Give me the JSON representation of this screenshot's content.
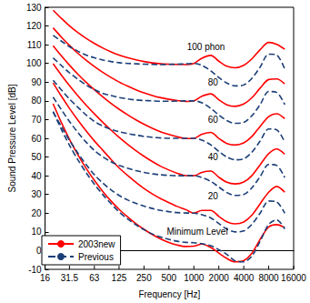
{
  "chart_data": {
    "type": "line",
    "x_label": "Frequency [Hz]",
    "y_label": "Sound Pressure Level [dB]",
    "log": "x",
    "grid": false,
    "legend": "lower left",
    "xlim": [
      16,
      16000
    ],
    "xticks": [
      16,
      31.5,
      63,
      125,
      250,
      500,
      1000,
      2000,
      4000,
      8000,
      16000
    ],
    "ylim": [
      -10,
      130
    ],
    "yticks": [
      -10,
      0,
      10,
      20,
      30,
      40,
      50,
      60,
      70,
      80,
      90,
      100,
      110,
      120,
      130
    ],
    "x": [
      20,
      25,
      31.5,
      40,
      50,
      63,
      80,
      100,
      125,
      160,
      200,
      250,
      315,
      400,
      500,
      630,
      800,
      1000,
      1250,
      1600,
      2000,
      2500,
      3150,
      4000,
      5000,
      6300,
      8000,
      10000,
      12500
    ],
    "series": [
      {
        "name": "2003new",
        "color": "#ff0000",
        "line_style": "solid",
        "values": [
          128.4,
          124.2,
          120.1,
          116.4,
          113.4,
          110.7,
          108.2,
          106.2,
          104.5,
          103.0,
          101.9,
          101.0,
          100.3,
          99.8,
          99.6,
          99.5,
          99.4,
          100.0,
          102.8,
          104.3,
          101.2,
          98.5,
          97.7,
          99.0,
          102.4,
          107.3,
          111.2,
          110.2,
          107.6
        ]
      },
      {
        "name": "2003new",
        "color": "#ff0000",
        "line_style": "solid",
        "values": [
          118.99,
          114.23,
          109.65,
          105.34,
          101.72,
          98.36,
          95.17,
          92.48,
          90.09,
          87.82,
          85.92,
          84.31,
          82.89,
          81.68,
          80.86,
          80.17,
          79.67,
          80.01,
          82.48,
          83.74,
          80.59,
          77.88,
          77.07,
          78.31,
          81.62,
          86.81,
          91.41,
          91.74,
          89.04
        ]
      },
      {
        "name": "2003new",
        "color": "#ff0000",
        "line_style": "solid",
        "values": [
          109.51,
          104.23,
          99.08,
          94.18,
          89.96,
          85.94,
          82.05,
          78.65,
          75.56,
          72.47,
          69.86,
          67.53,
          65.39,
          63.45,
          62.05,
          60.81,
          59.89,
          60.01,
          62.15,
          63.19,
          59.96,
          57.26,
          56.42,
          57.57,
          60.89,
          66.36,
          71.66,
          73.16,
          70.47
        ]
      },
      {
        "name": "2003new",
        "color": "#ff0000",
        "line_style": "solid",
        "values": [
          99.85,
          93.94,
          88.17,
          82.63,
          77.78,
          73.08,
          68.48,
          64.37,
          60.59,
          56.7,
          53.41,
          50.4,
          47.58,
          44.98,
          43.05,
          41.34,
          40.06,
          40.01,
          41.82,
          42.51,
          39.23,
          36.51,
          35.61,
          36.65,
          40.01,
          45.83,
          51.8,
          54.28,
          51.49
        ]
      },
      {
        "name": "2003new",
        "color": "#ff0000",
        "line_style": "solid",
        "values": [
          89.6,
          82.7,
          76.0,
          69.6,
          64.0,
          58.6,
          53.5,
          48.7,
          44.2,
          40.0,
          36.5,
          33.2,
          30.3,
          27.7,
          25.6,
          23.6,
          21.9,
          20.0,
          21.5,
          21.5,
          18.3,
          15.4,
          14.3,
          15.3,
          18.9,
          25.0,
          31.2,
          34.3,
          31.2
        ]
      },
      {
        "name": "2003new",
        "color": "#ff0000",
        "line_style": "solid",
        "values": [
          78.5,
          68.7,
          59.5,
          51.1,
          44.0,
          37.5,
          31.5,
          26.5,
          22.1,
          17.9,
          14.4,
          11.4,
          8.6,
          6.2,
          4.4,
          3.0,
          2.2,
          2.4,
          3.5,
          1.7,
          -1.3,
          -4.2,
          -6.0,
          -5.4,
          -1.5,
          6.0,
          12.6,
          13.9,
          12.3
        ]
      },
      {
        "name": "Previous",
        "color": "#1c3f78",
        "line_style": "dashed",
        "values": [
          115,
          112,
          109,
          106.5,
          104.5,
          103,
          101.8,
          101,
          100.4,
          100,
          99.8,
          99.6,
          99.5,
          99.4,
          99.5,
          99.6,
          99.8,
          100,
          99,
          96,
          92.5,
          89.5,
          88,
          88.5,
          92,
          98,
          105,
          104.5,
          97
        ]
      },
      {
        "name": "Previous",
        "color": "#1c3f78",
        "line_style": "dashed",
        "values": [
          103,
          99,
          95,
          91.5,
          88.5,
          86,
          84,
          82.8,
          81.8,
          81,
          80.5,
          80.2,
          80,
          79.8,
          79.8,
          79.9,
          80,
          80,
          79,
          76,
          72.5,
          69.5,
          68,
          68.5,
          72,
          78,
          85,
          84.5,
          78
        ]
      },
      {
        "name": "Previous",
        "color": "#1c3f78",
        "line_style": "dashed",
        "values": [
          91,
          86,
          81,
          76.5,
          72.5,
          69,
          66.5,
          64.8,
          63.5,
          62.5,
          61.7,
          61,
          60.5,
          60.2,
          60,
          60,
          60,
          60,
          59,
          56.5,
          53,
          50,
          48.5,
          49,
          52.5,
          58.5,
          65,
          64.5,
          58
        ]
      },
      {
        "name": "Previous",
        "color": "#1c3f78",
        "line_style": "dashed",
        "values": [
          82,
          75.5,
          69,
          63,
          58,
          53.5,
          50,
          47.5,
          45.5,
          44,
          42.7,
          41.8,
          41,
          40.5,
          40.2,
          40,
          40,
          40,
          39,
          37,
          34,
          31,
          29.5,
          30,
          33.5,
          39.5,
          46,
          45.5,
          39
        ]
      },
      {
        "name": "Previous",
        "color": "#1c3f78",
        "line_style": "dashed",
        "values": [
          74,
          66.5,
          59,
          52,
          46,
          40.5,
          36,
          32.5,
          29.5,
          27,
          25.2,
          23.8,
          22.5,
          21.5,
          20.8,
          20.3,
          20.1,
          20,
          19.2,
          17.5,
          14.5,
          11.5,
          10,
          10.5,
          14,
          20,
          26.5,
          26,
          20
        ]
      },
      {
        "name": "Previous",
        "color": "#1c3f78",
        "line_style": "dashed",
        "values": [
          74.3,
          65,
          56.3,
          48.4,
          41.7,
          35.5,
          29.8,
          25.1,
          20.7,
          16.8,
          13.8,
          11.2,
          8.9,
          7.2,
          6,
          5,
          4.4,
          4.2,
          3.7,
          2.6,
          0.5,
          -2,
          -5.5,
          -6,
          -3,
          5,
          14,
          16.4,
          11.6
        ]
      }
    ],
    "annotations": [
      {
        "text": "100 phon",
        "x": 1400,
        "y": 109
      },
      {
        "text": "80",
        "x": 1700,
        "y": 90
      },
      {
        "text": "60",
        "x": 1700,
        "y": 70
      },
      {
        "text": "40",
        "x": 1700,
        "y": 50
      },
      {
        "text": "20",
        "x": 1700,
        "y": 29
      },
      {
        "text": "Minimum Level",
        "x": 1100,
        "y": 10
      }
    ]
  }
}
